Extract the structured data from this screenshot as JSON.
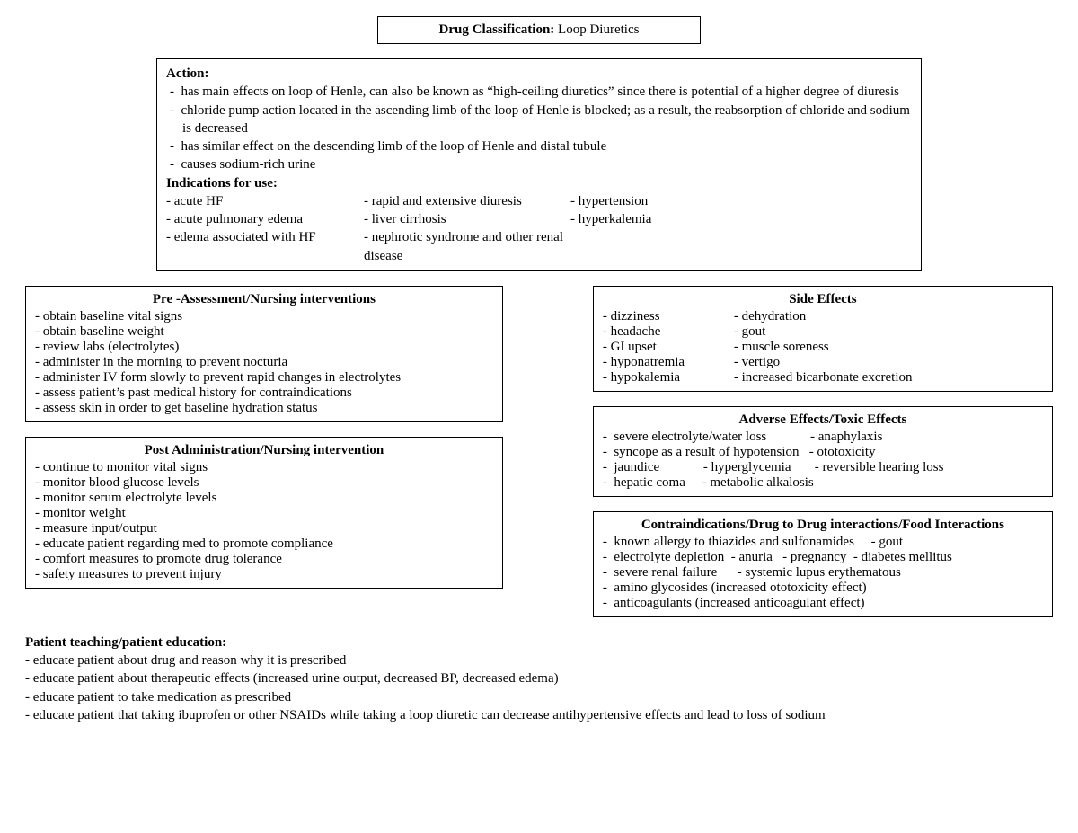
{
  "title": {
    "label": "Drug Classification:",
    "value": "Loop Diuretics"
  },
  "action": {
    "heading": "Action:",
    "bullets": [
      "has main effects on loop of Henle, can also be known as “high-ceiling diuretics” since there is potential of a higher degree of diuresis",
      "chloride pump action located in the ascending limb of the loop of Henle is blocked; as a result, the reabsorption of chloride and sodium is decreased",
      "has similar effect on the descending limb of the loop of Henle and distal tubule",
      "causes sodium-rich urine"
    ],
    "indications_heading": "Indications for use:",
    "indications": [
      [
        "-  acute HF",
        "- rapid and extensive diuresis",
        "- hypertension"
      ],
      [
        "-  acute pulmonary edema",
        "- liver cirrhosis",
        "- hyperkalemia"
      ],
      [
        "-  edema associated with HF",
        "- nephrotic syndrome and other renal disease",
        ""
      ]
    ]
  },
  "preAssessment": {
    "heading": "Pre -Assessment/Nursing interventions",
    "bullets": [
      "obtain baseline vital signs",
      "obtain baseline weight",
      "review labs (electrolytes)",
      "administer in the morning to prevent nocturia",
      "administer IV form slowly to prevent rapid changes in electrolytes",
      "assess patient’s past medical history for contraindications",
      "assess skin in order to get baseline hydration status"
    ]
  },
  "postAdmin": {
    "heading": "Post Administration/Nursing intervention",
    "bullets": [
      "continue to monitor vital signs",
      "monitor blood glucose levels",
      "monitor serum electrolyte levels",
      "monitor weight",
      "measure input/output",
      "educate patient regarding med to promote compliance",
      "comfort measures to promote drug tolerance",
      "safety measures to prevent injury"
    ]
  },
  "sideEffects": {
    "heading": "Side Effects",
    "col1": [
      "-  dizziness",
      "-  headache",
      "-  GI upset",
      "-  hyponatremia",
      "-  hypokalemia"
    ],
    "col2": [
      "- dehydration",
      "- gout",
      "- muscle soreness",
      "- vertigo",
      "- increased bicarbonate excretion"
    ]
  },
  "adverse": {
    "heading": "Adverse Effects/Toxic Effects",
    "rows": [
      "-  severe electrolyte/water loss             - anaphylaxis",
      "-  syncope as a result of hypotension   - ototoxicity",
      "-  jaundice             - hyperglycemia       - reversible hearing loss",
      "-  hepatic coma     - metabolic alkalosis"
    ]
  },
  "contra": {
    "heading": "Contraindications/Drug to Drug interactions/Food Interactions",
    "rows": [
      "-  known allergy to thiazides and sulfonamides     - gout",
      "-  electrolyte depletion  - anuria   - pregnancy  - diabetes mellitus",
      "-  severe renal failure      - systemic lupus erythematous",
      "-  amino glycosides (increased ototoxicity effect)",
      "-  anticoagulants (increased anticoagulant effect)"
    ]
  },
  "teaching": {
    "heading": "Patient teaching/patient education:",
    "bullets": [
      "educate patient about drug and reason why it is prescribed",
      "educate patient about therapeutic effects (increased urine output, decreased BP, decreased edema)",
      "educate patient to take medication as prescribed",
      "educate patient that taking ibuprofen or other NSAIDs while taking a loop diuretic can decrease antihypertensive effects and lead to loss of sodium"
    ]
  }
}
